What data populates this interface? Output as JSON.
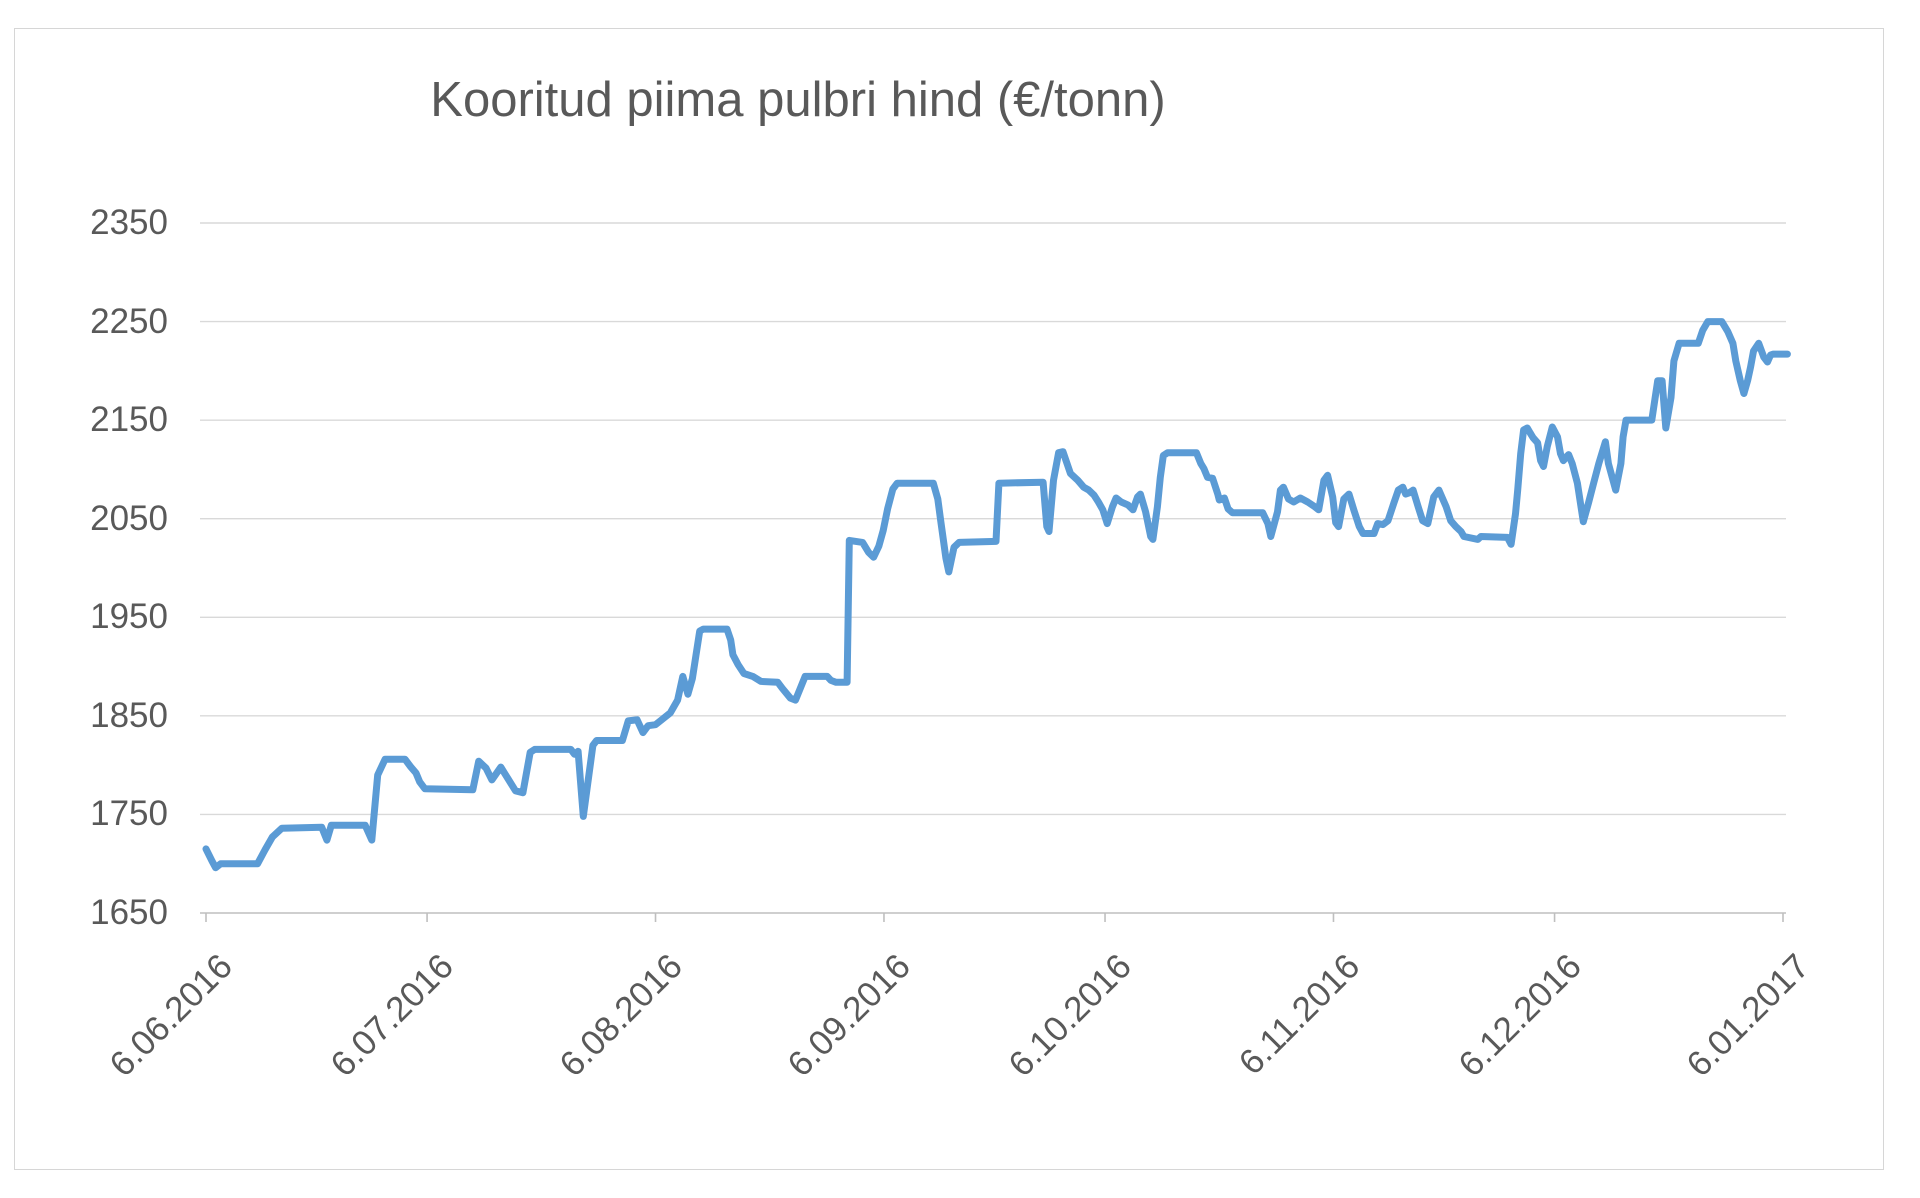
{
  "chart_data": {
    "type": "line",
    "title": "Kooritud piima pulbri hind (€/tonn)",
    "xlabel": "",
    "ylabel": "",
    "legend": "none",
    "grid": true,
    "line_color": "#5B9BD5",
    "grid_color": "#D9D9D9",
    "axis_color": "#BFBFBF",
    "text_color": "#595959",
    "ylim": [
      1650,
      2350
    ],
    "y_ticks": [
      1650,
      1750,
      1850,
      1950,
      2050,
      2150,
      2250,
      2350
    ],
    "y_tick_labels": [
      "1650",
      "1750",
      "1850",
      "1950",
      "2050",
      "2150",
      "2250",
      "2350"
    ],
    "xlim_days": [
      0,
      214
    ],
    "x_tick_days": [
      0,
      30,
      61,
      92,
      122,
      153,
      183,
      214
    ],
    "x_tick_labels": [
      "6.06.2016",
      "6.07.2016",
      "6.08.2016",
      "6.09.2016",
      "6.10.2016",
      "6.11.2016",
      "6.12.2016",
      "6.01.2017"
    ],
    "series_name": "Kooritud piima pulbri hind",
    "points": [
      [
        0,
        1715
      ],
      [
        0.8,
        1703
      ],
      [
        1.3,
        1696
      ],
      [
        2,
        1700
      ],
      [
        7,
        1700
      ],
      [
        8,
        1714
      ],
      [
        9,
        1727
      ],
      [
        10.3,
        1736
      ],
      [
        15.7,
        1737
      ],
      [
        16.4,
        1724
      ],
      [
        17,
        1739
      ],
      [
        21.6,
        1739
      ],
      [
        22.5,
        1724
      ],
      [
        23.3,
        1790
      ],
      [
        24.3,
        1806
      ],
      [
        27,
        1806
      ],
      [
        27.8,
        1798
      ],
      [
        28.5,
        1792
      ],
      [
        29,
        1783
      ],
      [
        29.7,
        1776
      ],
      [
        36.2,
        1775
      ],
      [
        37,
        1804
      ],
      [
        38,
        1797
      ],
      [
        38.8,
        1785
      ],
      [
        40,
        1798
      ],
      [
        41,
        1786
      ],
      [
        42,
        1774
      ],
      [
        43,
        1772
      ],
      [
        44,
        1813
      ],
      [
        44.6,
        1816
      ],
      [
        49.5,
        1816
      ],
      [
        50,
        1811
      ],
      [
        50.5,
        1814
      ],
      [
        51.2,
        1748
      ],
      [
        52.5,
        1820
      ],
      [
        53,
        1825
      ],
      [
        56.5,
        1825
      ],
      [
        57.3,
        1845
      ],
      [
        58.5,
        1846
      ],
      [
        59.3,
        1833
      ],
      [
        60,
        1840
      ],
      [
        61,
        1841
      ],
      [
        62,
        1847
      ],
      [
        63,
        1853
      ],
      [
        64,
        1866
      ],
      [
        64.7,
        1890
      ],
      [
        65.4,
        1872
      ],
      [
        66,
        1888
      ],
      [
        67,
        1936
      ],
      [
        67.5,
        1938
      ],
      [
        70.7,
        1938
      ],
      [
        71.2,
        1927
      ],
      [
        71.5,
        1912
      ],
      [
        72.2,
        1902
      ],
      [
        73,
        1893
      ],
      [
        74.2,
        1890
      ],
      [
        75.3,
        1885
      ],
      [
        77.6,
        1884
      ],
      [
        78.2,
        1878
      ],
      [
        79.3,
        1868
      ],
      [
        80,
        1866
      ],
      [
        80.7,
        1879
      ],
      [
        81.3,
        1890
      ],
      [
        84.3,
        1890
      ],
      [
        84.8,
        1886
      ],
      [
        85.5,
        1884
      ],
      [
        87,
        1884
      ],
      [
        87.3,
        2028
      ],
      [
        89.1,
        2026
      ],
      [
        89.9,
        2016
      ],
      [
        90.6,
        2011
      ],
      [
        91.3,
        2022
      ],
      [
        91.9,
        2038
      ],
      [
        92.5,
        2060
      ],
      [
        93.2,
        2080
      ],
      [
        93.8,
        2086
      ],
      [
        98.7,
        2086
      ],
      [
        99.3,
        2070
      ],
      [
        99.7,
        2048
      ],
      [
        100.4,
        2010
      ],
      [
        100.8,
        1996
      ],
      [
        101.5,
        2021
      ],
      [
        102.2,
        2026
      ],
      [
        107.2,
        2027
      ],
      [
        107.6,
        2086
      ],
      [
        113.6,
        2087
      ],
      [
        114.1,
        2042
      ],
      [
        114.4,
        2037
      ],
      [
        115,
        2089
      ],
      [
        115.7,
        2117
      ],
      [
        116.3,
        2118
      ],
      [
        117.3,
        2096
      ],
      [
        118.3,
        2089
      ],
      [
        119.1,
        2082
      ],
      [
        119.8,
        2079
      ],
      [
        120.5,
        2074
      ],
      [
        121.1,
        2067
      ],
      [
        121.7,
        2059
      ],
      [
        122.3,
        2045
      ],
      [
        123,
        2062
      ],
      [
        123.5,
        2071
      ],
      [
        124.2,
        2067
      ],
      [
        125.1,
        2064
      ],
      [
        125.8,
        2059
      ],
      [
        126.4,
        2072
      ],
      [
        126.8,
        2075
      ],
      [
        127.5,
        2057
      ],
      [
        128.2,
        2032
      ],
      [
        128.5,
        2029
      ],
      [
        129.1,
        2062
      ],
      [
        129.5,
        2092
      ],
      [
        129.9,
        2114
      ],
      [
        130.5,
        2117
      ],
      [
        134.4,
        2117
      ],
      [
        135,
        2106
      ],
      [
        135.4,
        2101
      ],
      [
        135.9,
        2092
      ],
      [
        136.6,
        2091
      ],
      [
        137.3,
        2075
      ],
      [
        137.5,
        2069
      ],
      [
        138.2,
        2071
      ],
      [
        138.7,
        2060
      ],
      [
        139.3,
        2056
      ],
      [
        143.4,
        2056
      ],
      [
        144.1,
        2045
      ],
      [
        144.5,
        2032
      ],
      [
        145.4,
        2057
      ],
      [
        145.8,
        2079
      ],
      [
        146.2,
        2082
      ],
      [
        146.9,
        2070
      ],
      [
        147.6,
        2067
      ],
      [
        148.5,
        2071
      ],
      [
        149.5,
        2067
      ],
      [
        150.3,
        2063
      ],
      [
        151,
        2059
      ],
      [
        151.7,
        2089
      ],
      [
        152.2,
        2094
      ],
      [
        152.9,
        2072
      ],
      [
        153.3,
        2046
      ],
      [
        153.7,
        2042
      ],
      [
        154.4,
        2070
      ],
      [
        155.1,
        2075
      ],
      [
        155.8,
        2058
      ],
      [
        156.5,
        2042
      ],
      [
        157,
        2035
      ],
      [
        158.5,
        2035
      ],
      [
        159,
        2045
      ],
      [
        159.7,
        2044
      ],
      [
        160.4,
        2048
      ],
      [
        161.2,
        2066
      ],
      [
        161.8,
        2079
      ],
      [
        162.4,
        2082
      ],
      [
        162.8,
        2075
      ],
      [
        163.2,
        2076
      ],
      [
        163.8,
        2079
      ],
      [
        164.5,
        2062
      ],
      [
        165.1,
        2048
      ],
      [
        165.8,
        2045
      ],
      [
        166.6,
        2072
      ],
      [
        167.3,
        2079
      ],
      [
        168.3,
        2062
      ],
      [
        168.9,
        2048
      ],
      [
        169.6,
        2042
      ],
      [
        170.3,
        2037
      ],
      [
        170.7,
        2032
      ],
      [
        172.6,
        2029
      ],
      [
        173,
        2032
      ],
      [
        176.6,
        2031
      ],
      [
        177.1,
        2024
      ],
      [
        177.7,
        2055
      ],
      [
        178,
        2079
      ],
      [
        178.4,
        2116
      ],
      [
        178.8,
        2140
      ],
      [
        179.3,
        2142
      ],
      [
        179.7,
        2137
      ],
      [
        180.1,
        2132
      ],
      [
        180.7,
        2127
      ],
      [
        181.1,
        2109
      ],
      [
        181.5,
        2103
      ],
      [
        182,
        2123
      ],
      [
        182.7,
        2143
      ],
      [
        183.4,
        2133
      ],
      [
        183.8,
        2116
      ],
      [
        184.2,
        2109
      ],
      [
        184.9,
        2115
      ],
      [
        185.4,
        2106
      ],
      [
        186.1,
        2086
      ],
      [
        186.9,
        2047
      ],
      [
        187.6,
        2066
      ],
      [
        188.3,
        2086
      ],
      [
        189,
        2106
      ],
      [
        189.9,
        2128
      ],
      [
        190.3,
        2106
      ],
      [
        191.3,
        2079
      ],
      [
        192,
        2106
      ],
      [
        192.3,
        2133
      ],
      [
        192.7,
        2150
      ],
      [
        196.2,
        2150
      ],
      [
        197,
        2190
      ],
      [
        197.6,
        2190
      ],
      [
        198.1,
        2142
      ],
      [
        198.8,
        2173
      ],
      [
        199.2,
        2210
      ],
      [
        199.9,
        2228
      ],
      [
        202.5,
        2228
      ],
      [
        203.1,
        2241
      ],
      [
        203.8,
        2250
      ],
      [
        205.7,
        2250
      ],
      [
        206.5,
        2240
      ],
      [
        207.2,
        2228
      ],
      [
        207.6,
        2210
      ],
      [
        208.2,
        2190
      ],
      [
        208.7,
        2177
      ],
      [
        209.2,
        2190
      ],
      [
        209.6,
        2204
      ],
      [
        210,
        2220
      ],
      [
        210.7,
        2228
      ],
      [
        211.4,
        2214
      ],
      [
        211.9,
        2209
      ],
      [
        212.3,
        2216
      ],
      [
        212.7,
        2217
      ],
      [
        214.6,
        2217
      ]
    ]
  }
}
